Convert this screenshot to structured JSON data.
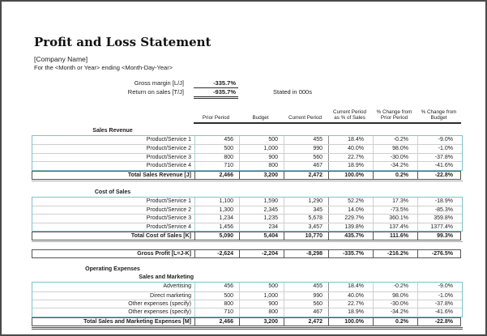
{
  "page": {
    "title": "Profit and Loss Statement",
    "company_name": "[Company Name]",
    "subtitle": "For the <Month or Year> ending <Month-Day-Year>",
    "stated_in": "Stated in 000s"
  },
  "colors": {
    "accent_border": "#7fc2ca",
    "frame_border": "#4a4a4a"
  },
  "ratios": [
    {
      "label": "Gross margin [L/J]",
      "value": "-335.7%",
      "underline": "single"
    },
    {
      "label": "Return on sales [T/J]",
      "value": "-935.7%",
      "underline": "double"
    }
  ],
  "columns": [
    "Prior Period",
    "Budget",
    "Current Period",
    "Current Period as % of Sales",
    "% Change from Prior Period",
    "% Change from Budget"
  ],
  "table": {
    "sections": [
      {
        "heading": "Sales Revenue",
        "heading_underline": true,
        "rows": [
          {
            "label": "Product/Service 1",
            "values": [
              "456",
              "500",
              "455",
              "18.4%",
              "-0.2%",
              "-9.0%"
            ]
          },
          {
            "label": "Product/Service 2",
            "values": [
              "500",
              "1,000",
              "990",
              "40.0%",
              "98.0%",
              "-1.0%"
            ]
          },
          {
            "label": "Product/Service 3",
            "values": [
              "800",
              "900",
              "560",
              "22.7%",
              "-30.0%",
              "-37.8%"
            ]
          },
          {
            "label": "Product/Service 4",
            "values": [
              "710",
              "800",
              "467",
              "18.9%",
              "-34.2%",
              "-41.6%"
            ]
          }
        ],
        "total": {
          "label": "Total Sales Revenue [J]",
          "values": [
            "2,466",
            "3,200",
            "2,472",
            "100.0%",
            "0.2%",
            "-22.8%"
          ]
        }
      },
      {
        "heading": "Cost of Sales",
        "heading_underline": true,
        "rows": [
          {
            "label": "Product/Service 1",
            "values": [
              "1,100",
              "1,590",
              "1,290",
              "52.2%",
              "17.3%",
              "-18.9%"
            ]
          },
          {
            "label": "Product/Service 2",
            "values": [
              "1,300",
              "2,345",
              "345",
              "14.0%",
              "-73.5%",
              "-85.3%"
            ]
          },
          {
            "label": "Product/Service 3",
            "values": [
              "1,234",
              "1,235",
              "5,678",
              "229.7%",
              "360.1%",
              "359.8%"
            ]
          },
          {
            "label": "Product/Service 4",
            "values": [
              "1,456",
              "234",
              "3,457",
              "139.8%",
              "137.4%",
              "1377.4%"
            ]
          }
        ],
        "total": {
          "label": "Total Cost of Sales [K]",
          "values": [
            "5,090",
            "5,404",
            "10,770",
            "435.7%",
            "111.6%",
            "99.3%"
          ]
        }
      },
      {
        "standalone": {
          "label": "Gross Profit [L=J-K]",
          "values": [
            "-2,624",
            "-2,204",
            "-8,298",
            "-335.7%",
            "-216.2%",
            "-276.5%"
          ]
        }
      },
      {
        "heading": "Operating Expenses",
        "heading_underline": false,
        "subheading": "Sales and Marketing",
        "rows": [
          {
            "label": "Advertising",
            "values": [
              "456",
              "500",
              "455",
              "18.4%",
              "-0.2%",
              "-9.0%"
            ]
          },
          {
            "label": "Direct marketing",
            "values": [
              "500",
              "1,000",
              "990",
              "40.0%",
              "98.0%",
              "-1.0%"
            ]
          },
          {
            "label": "Other expenses (specify)",
            "values": [
              "800",
              "900",
              "560",
              "22.7%",
              "-30.0%",
              "-37.8%"
            ]
          },
          {
            "label": "Other expenses (specify)",
            "values": [
              "710",
              "800",
              "467",
              "18.9%",
              "-34.2%",
              "-41.6%"
            ]
          }
        ],
        "total": {
          "label": "Total Sales and Marketing Expenses [M]",
          "values": [
            "2,466",
            "3,200",
            "2,472",
            "100.0%",
            "0.2%",
            "-22.8%"
          ]
        },
        "final_rule": true
      }
    ]
  }
}
